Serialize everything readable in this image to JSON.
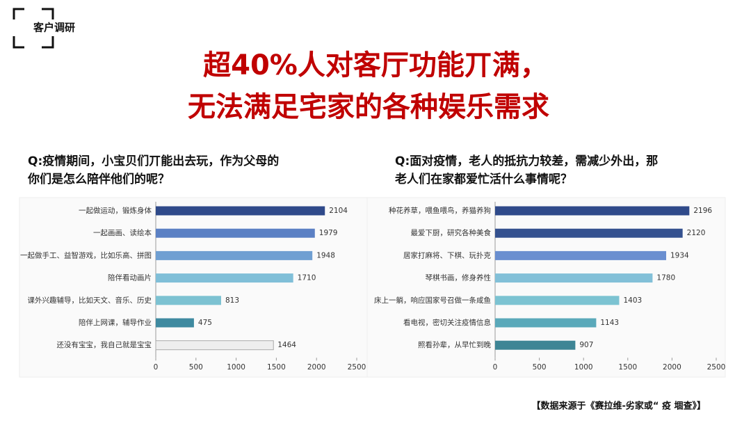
{
  "tag": "客户调研",
  "headline": [
    "超40%人对客厅功能丌满，",
    "无法满足宅家的各种娱乐需求"
  ],
  "source": "【数据来源于《赛拉维-劣家或“ 疫 堌查》】",
  "chart_data": [
    {
      "type": "bar",
      "orientation": "horizontal",
      "title": [
        "Q:疫情期间，小宝贝们丌能出去玩，作为父母的",
        "你们是怎么陪伴他们的呢？"
      ],
      "categories": [
        "一起做运动，锻炼身体",
        "一起画画、读绘本",
        "一起做手工、益智游戏，比如乐高、拼图",
        "陪伴看动画片",
        "课外兴趣辅导，比如天文、音乐、历史",
        "陪伴上网课，辅导作业",
        "还没有宝宝，我自己就是宝宝"
      ],
      "values": [
        2104,
        1979,
        1948,
        1710,
        813,
        475,
        1464
      ],
      "colors": [
        "#2f4a8a",
        "#5b80c4",
        "#6f9fd2",
        "#80bfd8",
        "#7dc2d2",
        "#3f8aa0",
        "#eeeeee"
      ],
      "xlim": [
        0,
        2500
      ],
      "xticks": [
        0,
        500,
        1000,
        1500,
        2000,
        2500
      ]
    },
    {
      "type": "bar",
      "orientation": "horizontal",
      "title": [
        "Q:面对疫情，老人的抵抗力较差，需减少外出，那",
        "老人们在家都爱忙活什么事情呢？"
      ],
      "categories": [
        "种花养草，喂鱼喂鸟，养猫养狗",
        "最爱下厨，研究各种美食",
        "居家打麻将、下棋、玩扑克",
        "琴棋书画，修身养性",
        "床上一躺，响应国家号召做一条咸鱼",
        "看电视，密切关注疫情信息",
        "照看孙辈，从早忙到晚"
      ],
      "values": [
        2196,
        2120,
        1934,
        1780,
        1403,
        1143,
        907
      ],
      "colors": [
        "#2f4a8a",
        "#34518f",
        "#6a8fd0",
        "#82c0d8",
        "#7cc3d2",
        "#5aa9ba",
        "#3e8595"
      ],
      "xlim": [
        0,
        2500
      ],
      "xticks": [
        0,
        500,
        1000,
        1500,
        2000,
        2500
      ]
    }
  ]
}
